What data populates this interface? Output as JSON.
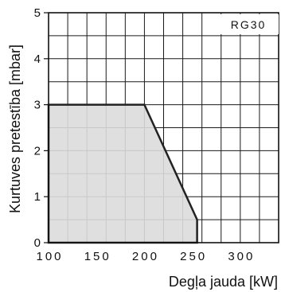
{
  "chart_data": {
    "type": "area",
    "model_label": "RG30",
    "xlabel": "Degļa jauda [kW]",
    "ylabel": "Kurtuves pretestība [mbar]",
    "xlim": [
      100,
      340
    ],
    "ylim": [
      0,
      5
    ],
    "x_ticks": [
      100,
      150,
      200,
      250,
      300
    ],
    "y_ticks": [
      0,
      1,
      2,
      3,
      4,
      5
    ],
    "x_grid_step": 20,
    "y_grid_step": 0.5,
    "grid": true,
    "series": [
      {
        "points": [
          [
            100,
            0
          ],
          [
            100,
            3
          ],
          [
            200,
            3
          ],
          [
            255,
            0.5
          ],
          [
            255,
            0
          ],
          [
            100,
            0
          ]
        ],
        "fill": "#dcdcdc",
        "stroke": "#222222"
      }
    ]
  }
}
